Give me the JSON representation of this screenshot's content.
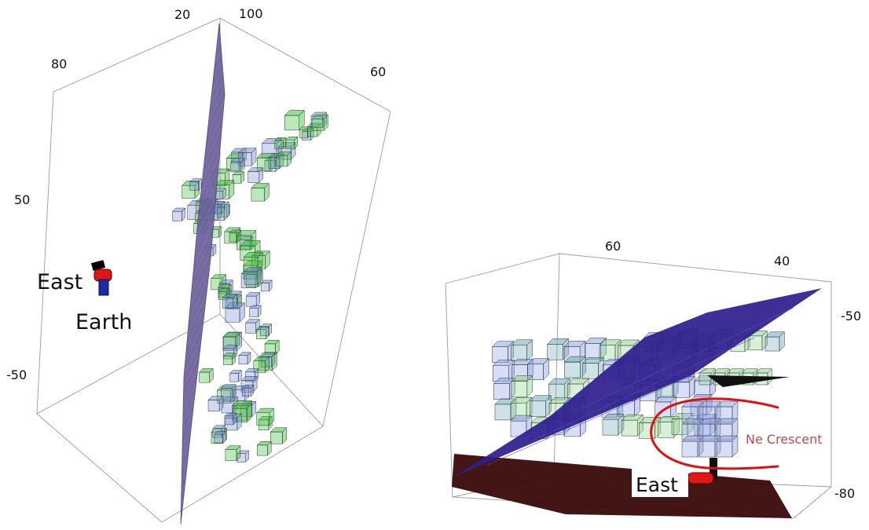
{
  "left_view": {
    "ticks": {
      "top_a": "20",
      "top_b": "100",
      "top_left": "80",
      "top_right": "60",
      "side_upper": "50",
      "side_lower": "-50"
    },
    "labels": {
      "east": "East",
      "earth": "Earth"
    },
    "colors": {
      "plane": "#6a5f9a",
      "voxel_green": "#3fbf3f",
      "voxel_blue": "#7f8fe0",
      "marker_red": "#e01515",
      "marker_blue": "#1d2aa6"
    }
  },
  "right_view": {
    "ticks": {
      "top_a": "60",
      "top_b": "40",
      "side_upper": "-50",
      "side_lower": "-80"
    },
    "labels": {
      "east": "East",
      "annotation": "Ne Crescent"
    },
    "colors": {
      "plane_blue": "#2e1f8e",
      "plane_brown": "#3a0808",
      "annotation_stroke": "#e01010"
    }
  }
}
